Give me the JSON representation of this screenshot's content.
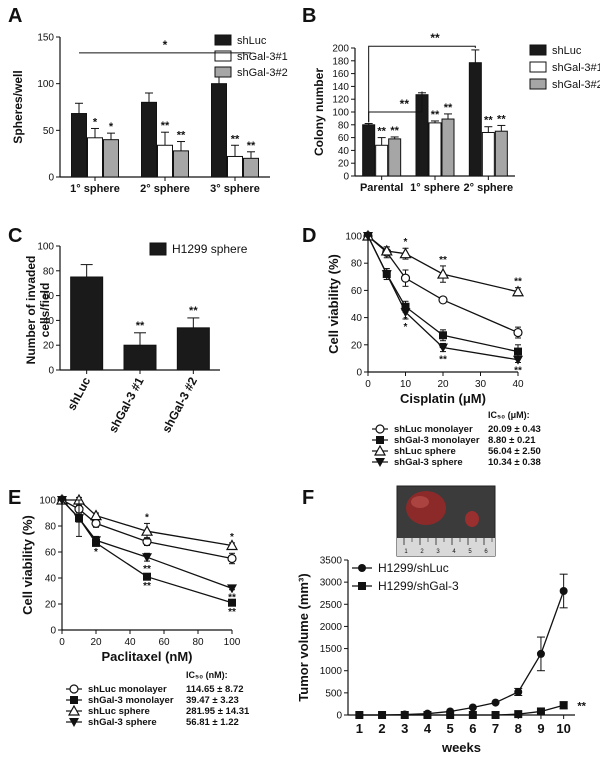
{
  "panels": {
    "A": {
      "letter": "A"
    },
    "B": {
      "letter": "B"
    },
    "C": {
      "letter": "C"
    },
    "D": {
      "letter": "D"
    },
    "E": {
      "letter": "E"
    },
    "F": {
      "letter": "F"
    }
  },
  "colors": {
    "black": "#1a1a1a",
    "white": "#ffffff",
    "gray": "#a6a6a6"
  },
  "chart_data": [
    {
      "id": "A",
      "type": "bar",
      "ylabel": "Spheres/well",
      "ylim": [
        0,
        150
      ],
      "yticks": [
        0,
        50,
        100,
        150
      ],
      "categories": [
        "1° sphere",
        "2° sphere",
        "3° sphere"
      ],
      "series": [
        {
          "name": "shLuc",
          "color": "#1a1a1a",
          "values": [
            68,
            80,
            100
          ],
          "errors": [
            11,
            10,
            12
          ],
          "sig": [
            "",
            "",
            ""
          ]
        },
        {
          "name": "shGal-3#1",
          "color": "#ffffff",
          "values": [
            42,
            34,
            22
          ],
          "errors": [
            10,
            14,
            12
          ],
          "sig": [
            "*",
            "**",
            "**"
          ]
        },
        {
          "name": "shGal-3#2",
          "color": "#a6a6a6",
          "values": [
            40,
            28,
            20
          ],
          "errors": [
            7,
            10,
            7
          ],
          "sig": [
            "*",
            "**",
            "**"
          ]
        }
      ],
      "brackets": [
        {
          "label": "*"
        }
      ]
    },
    {
      "id": "B",
      "type": "bar",
      "ylabel": "Colony number",
      "ylim": [
        0,
        200
      ],
      "yticks": [
        0,
        20,
        40,
        60,
        80,
        100,
        120,
        140,
        160,
        180,
        200
      ],
      "categories": [
        "Parental",
        "1° sphere",
        "2° sphere"
      ],
      "series": [
        {
          "name": "shLuc",
          "color": "#1a1a1a",
          "values": [
            80,
            127,
            177
          ],
          "errors": [
            2,
            3,
            20
          ],
          "sig": [
            "",
            "",
            ""
          ]
        },
        {
          "name": "shGal-3#1",
          "color": "#ffffff",
          "values": [
            48,
            83,
            68
          ],
          "errors": [
            12,
            3,
            9
          ],
          "sig": [
            "**",
            "**",
            "**"
          ]
        },
        {
          "name": "shGal-3#2",
          "color": "#a6a6a6",
          "values": [
            58,
            89,
            70
          ],
          "errors": [
            3,
            8,
            9
          ],
          "sig": [
            "**",
            "**",
            "**"
          ]
        }
      ],
      "brackets": [
        {
          "label": "**"
        },
        {
          "label": "**"
        }
      ]
    },
    {
      "id": "C",
      "type": "bar",
      "ylabel": "Number of invaded cells/field",
      "ylim": [
        0,
        100
      ],
      "yticks": [
        0,
        20,
        40,
        60,
        80,
        100
      ],
      "categories": [
        "shLuc",
        "shGal-3 #1",
        "shGal-3 #2"
      ],
      "values": [
        75,
        20,
        34
      ],
      "errors": [
        10,
        10,
        8
      ],
      "sig": [
        "",
        "**",
        "**"
      ],
      "legend": [
        "H1299 sphere"
      ]
    },
    {
      "id": "D",
      "type": "line",
      "xlabel": "Cisplatin (μM)",
      "ylabel": "Cell viability (%)",
      "xlim": [
        0,
        40
      ],
      "ylim": [
        0,
        100
      ],
      "xticks": [
        0,
        10,
        20,
        30,
        40
      ],
      "yticks": [
        0,
        20,
        40,
        60,
        80,
        100
      ],
      "x": [
        0,
        5,
        10,
        20,
        40
      ],
      "series": [
        {
          "name": "shLuc monolayer",
          "marker": "circle-open",
          "values": [
            100,
            88,
            69,
            53,
            29
          ],
          "errors": [
            0,
            4,
            6,
            2,
            4
          ],
          "sig": [
            "",
            "",
            "",
            "",
            ""
          ]
        },
        {
          "name": "shGal-3 monolayer",
          "marker": "square-filled",
          "values": [
            100,
            72,
            48,
            27,
            15
          ],
          "errors": [
            0,
            4,
            4,
            4,
            5
          ],
          "sig": [
            "",
            "",
            "*",
            "**",
            ""
          ]
        },
        {
          "name": "shLuc sphere",
          "marker": "triangle-open",
          "values": [
            100,
            89,
            87,
            72,
            59
          ],
          "errors": [
            0,
            3,
            4,
            6,
            3
          ],
          "sig": [
            "",
            "",
            "*",
            "**",
            "**"
          ]
        },
        {
          "name": "shGal-3 sphere",
          "marker": "triangle-down-filled",
          "values": [
            100,
            72,
            44,
            18,
            9
          ],
          "errors": [
            0,
            4,
            5,
            3,
            2
          ],
          "sig": [
            "",
            "",
            "*",
            "**",
            "**"
          ]
        }
      ],
      "ic50_header": "IC₅₀ (μM):",
      "ic50": [
        "20.09 ± 0.43",
        "8.80 ± 0.21",
        "56.04 ± 2.50",
        "10.34 ± 0.38"
      ]
    },
    {
      "id": "E",
      "type": "line",
      "xlabel": "Paclitaxel (nM)",
      "ylabel": "Cell viability (%)",
      "xlim": [
        0,
        100
      ],
      "ylim": [
        0,
        100
      ],
      "xticks": [
        0,
        20,
        40,
        60,
        80,
        100
      ],
      "yticks": [
        0,
        20,
        40,
        60,
        80,
        100
      ],
      "x": [
        0,
        10,
        20,
        50,
        100
      ],
      "series": [
        {
          "name": "shLuc monolayer",
          "marker": "circle-open",
          "values": [
            100,
            93,
            82,
            68,
            55
          ],
          "errors": [
            0,
            3,
            3,
            3,
            4
          ],
          "sig": [
            "",
            "",
            "",
            "",
            ""
          ]
        },
        {
          "name": "shGal-3 monolayer",
          "marker": "square-filled",
          "values": [
            100,
            86,
            67,
            41,
            21
          ],
          "errors": [
            0,
            3,
            2,
            1,
            1
          ],
          "sig": [
            "",
            "",
            "",
            "**",
            "**"
          ]
        },
        {
          "name": "shLuc sphere",
          "marker": "triangle-open",
          "values": [
            100,
            100,
            88,
            76,
            65
          ],
          "errors": [
            0,
            2,
            2,
            6,
            2
          ],
          "sig": [
            "",
            "",
            "",
            "*",
            "*"
          ]
        },
        {
          "name": "shGal-3 sphere",
          "marker": "triangle-down-filled",
          "values": [
            100,
            86,
            69,
            56,
            32
          ],
          "errors": [
            0,
            14,
            3,
            3,
            1
          ],
          "sig": [
            "",
            "",
            "*",
            "**",
            "**"
          ]
        }
      ],
      "ic50_header": "IC₅₀ (nM):",
      "ic50": [
        "114.65 ± 8.72",
        "39.47 ± 3.23",
        "281.95 ± 14.31",
        "56.81 ± 1.22"
      ]
    },
    {
      "id": "F",
      "type": "line",
      "xlabel": "weeks",
      "ylabel": "Tumor volume (mm³)",
      "xlim": [
        1,
        10
      ],
      "ylim": [
        0,
        3500
      ],
      "xticks": [
        1,
        2,
        3,
        4,
        5,
        6,
        7,
        8,
        9,
        10
      ],
      "yticks": [
        0,
        500,
        1000,
        1500,
        2000,
        2500,
        3000,
        3500
      ],
      "x": [
        1,
        2,
        3,
        4,
        5,
        6,
        7,
        8,
        9,
        10
      ],
      "series": [
        {
          "name": "H1299/shLuc",
          "marker": "circle-filled",
          "values": [
            0,
            0,
            10,
            30,
            80,
            170,
            280,
            520,
            1380,
            2800
          ],
          "errors": [
            0,
            0,
            0,
            0,
            0,
            0,
            0,
            80,
            380,
            380
          ]
        },
        {
          "name": "H1299/shGal-3",
          "marker": "square-filled",
          "values": [
            0,
            0,
            0,
            0,
            0,
            0,
            0,
            20,
            80,
            220
          ],
          "errors": [
            0,
            0,
            0,
            0,
            0,
            0,
            0,
            0,
            0,
            80
          ]
        }
      ],
      "end_sig": "**",
      "photo_ticks": [
        "1",
        "2",
        "3",
        "4",
        "5",
        "6"
      ]
    }
  ]
}
